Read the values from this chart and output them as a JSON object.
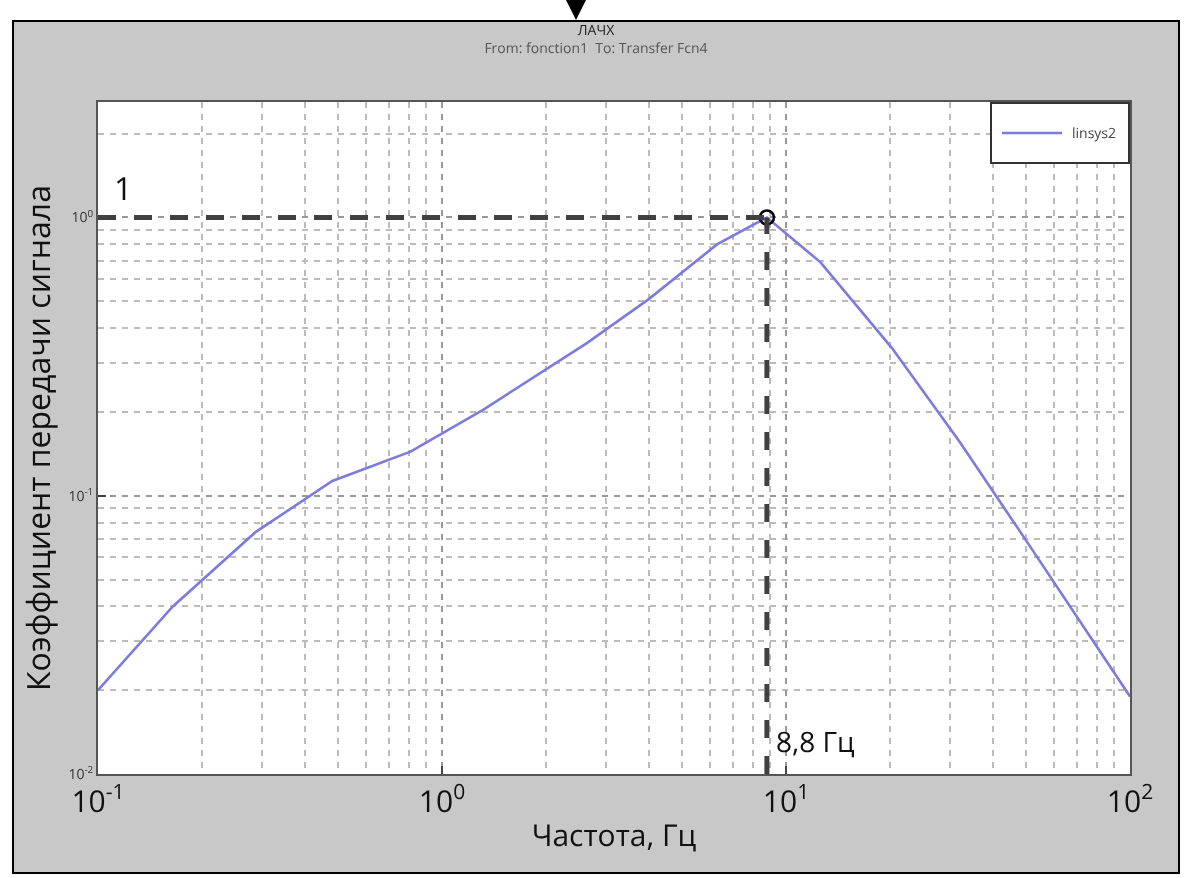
{
  "chart_data": {
    "type": "line",
    "title": "ЛАЧХ",
    "subtitle": "From: fonction1  To: Transfer Fcn4",
    "xlabel": "Частота, Гц",
    "ylabel": "Коэффициент передачи сигнала",
    "log": "xy",
    "grid": true,
    "legend": "top right",
    "xlim": [
      0.1,
      100
    ],
    "xticks": [
      {
        "value": 0.1,
        "label": "10$^{-1}$"
      },
      {
        "value": 1,
        "label": "10$^{0}$"
      },
      {
        "value": 10,
        "label": "10$^{1}$"
      },
      {
        "value": 100,
        "label": "10$^{2}$"
      }
    ],
    "ylim": [
      0.01,
      2.6
    ],
    "yticks": [
      {
        "value": 0.01,
        "label": "10$^{-2}$"
      },
      {
        "value": 0.1,
        "label": "10$^{-1}$"
      },
      {
        "value": 1,
        "label": "10$^{0}$"
      }
    ],
    "series": [
      {
        "name": "linsys2",
        "color": "#7b7be0",
        "x": [
          0.1,
          0.165,
          0.287,
          0.48,
          0.81,
          1.32,
          2.63,
          4.0,
          6.3,
          8.8,
          12.6,
          20.3,
          32,
          50.7,
          100
        ],
        "values": [
          0.02,
          0.04,
          0.074,
          0.113,
          0.144,
          0.204,
          0.353,
          0.51,
          0.8,
          1,
          0.69,
          0.34,
          0.156,
          0.067,
          0.019
        ]
      },
      {
        "type": "scatter",
        "color": "#000000",
        "marker": "circle",
        "x": [
          8.8
        ],
        "values": [
          1
        ]
      }
    ],
    "ref_lines": [
      {
        "axis": "y",
        "value": 1,
        "label": "1",
        "color": "#404040",
        "line_style": "dashed"
      },
      {
        "axis": "x",
        "value": 8.8,
        "label": "8,8 Гц",
        "color": "#404040",
        "line_style": "dashed"
      }
    ]
  }
}
